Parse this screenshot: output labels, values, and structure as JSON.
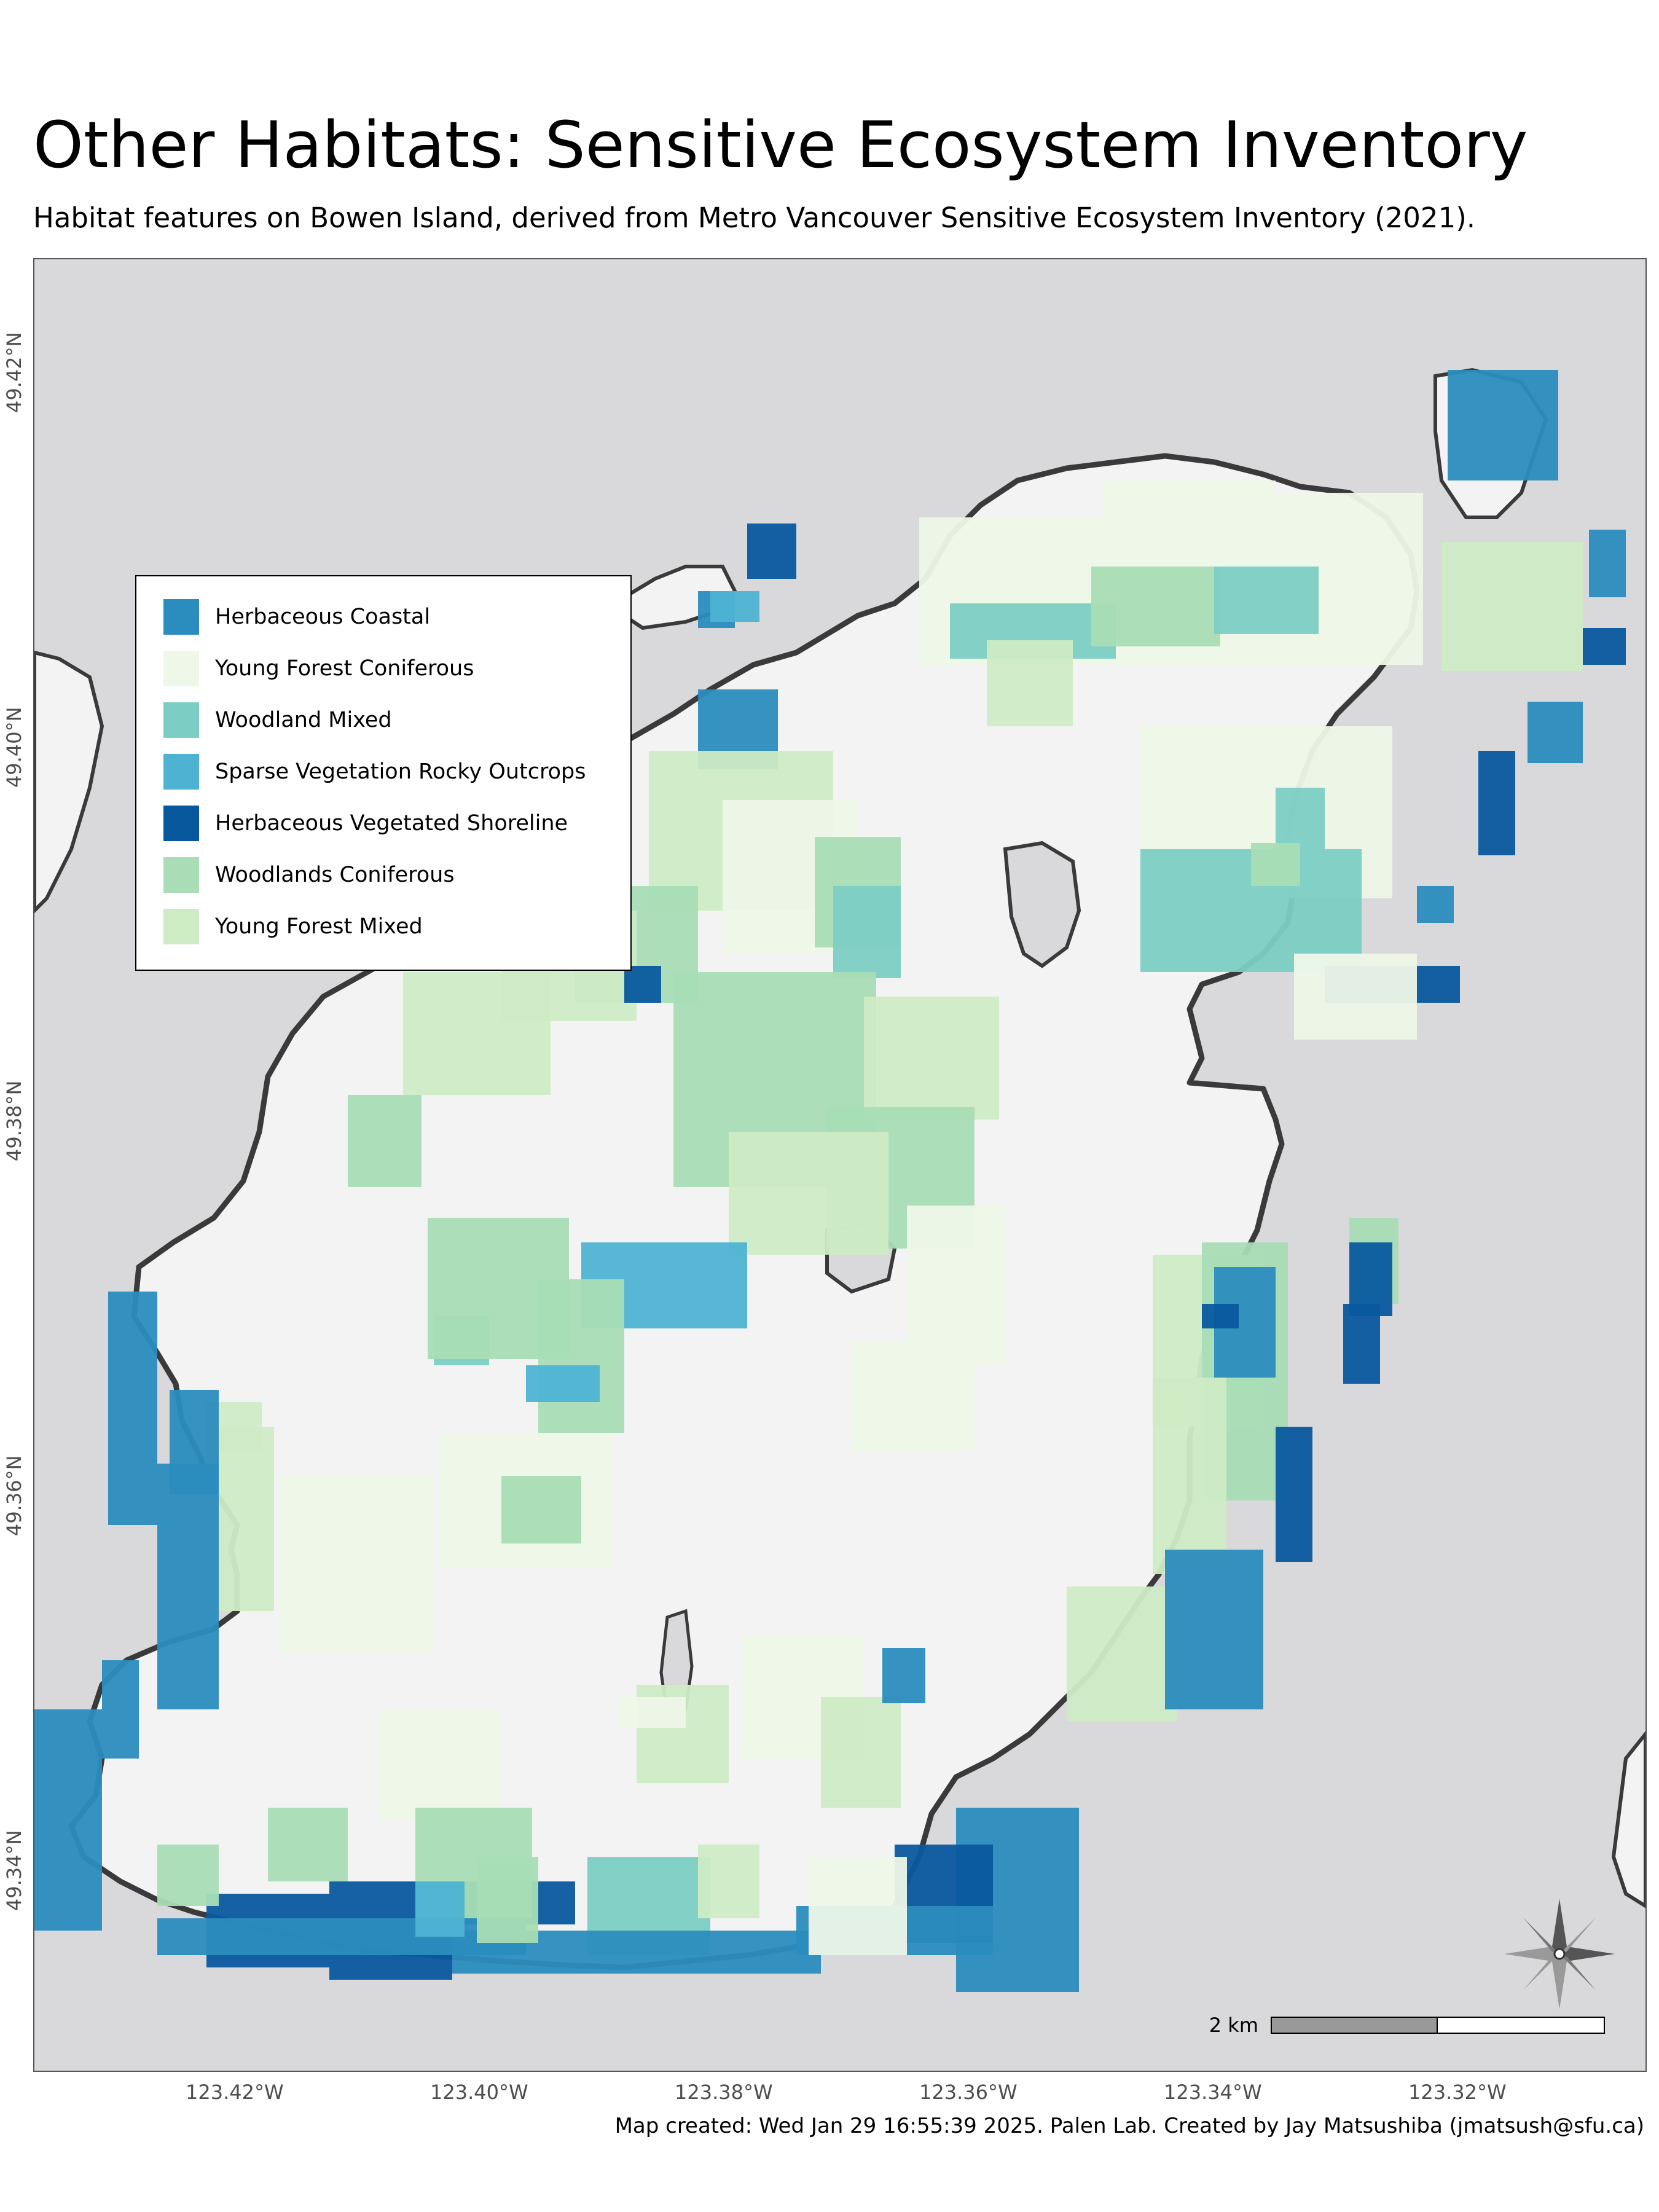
{
  "title": "Other Habitats: Sensitive Ecosystem Inventory",
  "subtitle": "Habitat features on Bowen Island, derived from Metro Vancouver Sensitive Ecosystem Inventory (2021).",
  "caption": "Map created: Wed Jan 29 16:55:39 2025. Palen Lab. Created by Jay Matsushiba (jmatsush@sfu.ca)",
  "colors": {
    "water": "#d9d9db",
    "land": "#f3f3f3",
    "coast": "#3a3a3a"
  },
  "legend": [
    {
      "label": "Herbaceous Coastal",
      "color": "#2b8cbe"
    },
    {
      "label": "Young Forest Coniferous",
      "color": "#eef7e8"
    },
    {
      "label": "Woodland Mixed",
      "color": "#7ccdc4"
    },
    {
      "label": "Sparse Vegetation Rocky Outcrops",
      "color": "#4eb3d3"
    },
    {
      "label": "Herbaceous Vegetated Shoreline",
      "color": "#08589e"
    },
    {
      "label": "Woodlands Coniferous",
      "color": "#a8ddb5"
    },
    {
      "label": "Young Forest Mixed",
      "color": "#cdebc5"
    }
  ],
  "axes": {
    "lat_labels": [
      "49.42°N",
      "49.40°N",
      "49.38°N",
      "49.36°N",
      "49.34°N"
    ],
    "lon_labels": [
      "123.42°W",
      "123.40°W",
      "123.38°W",
      "123.36°W",
      "123.34°W",
      "123.32°W"
    ]
  },
  "scale": {
    "label": "2 km"
  },
  "compass": {
    "north": "N"
  }
}
